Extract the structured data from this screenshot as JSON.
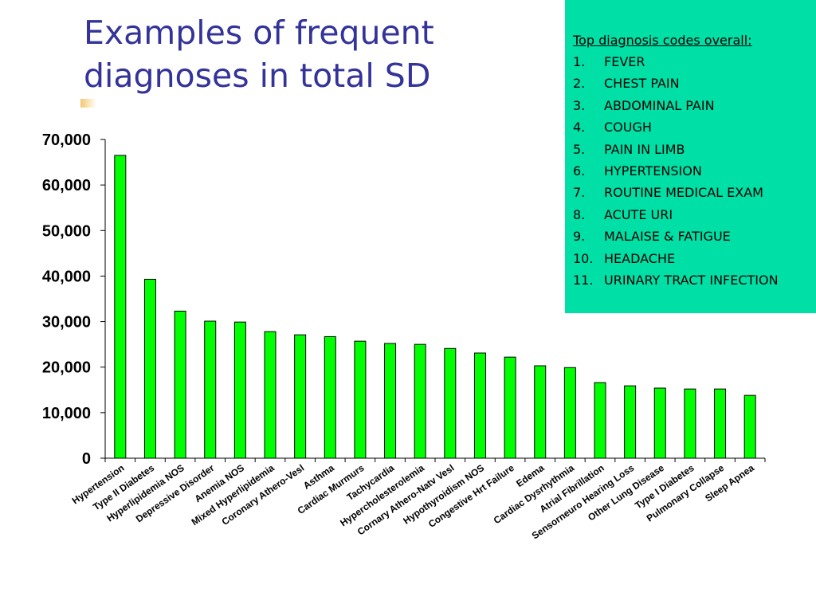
{
  "slide": {
    "title_line1": "Examples of frequent",
    "title_line2": "diagnoses in total SD"
  },
  "info_box": {
    "heading": "Top diagnosis codes overall:",
    "items": [
      {
        "num": "1.",
        "label": "FEVER"
      },
      {
        "num": "2.",
        "label": "CHEST PAIN"
      },
      {
        "num": "3.",
        "label": "ABDOMINAL PAIN"
      },
      {
        "num": "4.",
        "label": "COUGH"
      },
      {
        "num": "5.",
        "label": "PAIN IN LIMB"
      },
      {
        "num": "6.",
        "label": "HYPERTENSION"
      },
      {
        "num": "7.",
        "label": "ROUTINE MEDICAL EXAM"
      },
      {
        "num": "8.",
        "label": "ACUTE URI"
      },
      {
        "num": "9.",
        "label": "MALAISE & FATIGUE"
      },
      {
        "num": "10.",
        "label": "HEADACHE"
      },
      {
        "num": "11.",
        "label": "URINARY TRACT INFECTION"
      }
    ],
    "background_color": "#00e0a6"
  },
  "colors": {
    "title": "#333399",
    "bar_fill": "#00ff00",
    "bar_stroke": "#000000"
  },
  "chart_data": {
    "type": "bar",
    "categories": [
      "Hypertension",
      "Type II Diabetes",
      "Hyperlipidemia NOS",
      "Depressive Disorder",
      "Anemia NOS",
      "Mixed Hyperlipidemia",
      "Coronary Athero-Vesl",
      "Asthma",
      "Cardiac Murmurs",
      "Tachycardia",
      "Hypercholesterolemia",
      "Cornary Athero-Natv Vesl",
      "Hypothyroidism NOS",
      "Congestive Hrt Failure",
      "Edema",
      "Cardiac Dysrhythmia",
      "Atrial Fibrillation",
      "Sensorneuro Hearing Loss",
      "Other Lung Disease",
      "Type I Diabetes",
      "Pulmonary Collapse",
      "Sleep Apnea"
    ],
    "values": [
      66500,
      39300,
      32300,
      30100,
      29900,
      27800,
      27100,
      26700,
      25700,
      25200,
      25000,
      24100,
      23100,
      22200,
      20300,
      19900,
      16600,
      15900,
      15400,
      15200,
      15200,
      13800
    ],
    "ylim": [
      0,
      70000
    ],
    "yticks": [
      "0",
      "10,000",
      "20,000",
      "30,000",
      "40,000",
      "50,000",
      "60,000",
      "70,000"
    ],
    "xlabel": "",
    "ylabel": "",
    "grid": false
  }
}
